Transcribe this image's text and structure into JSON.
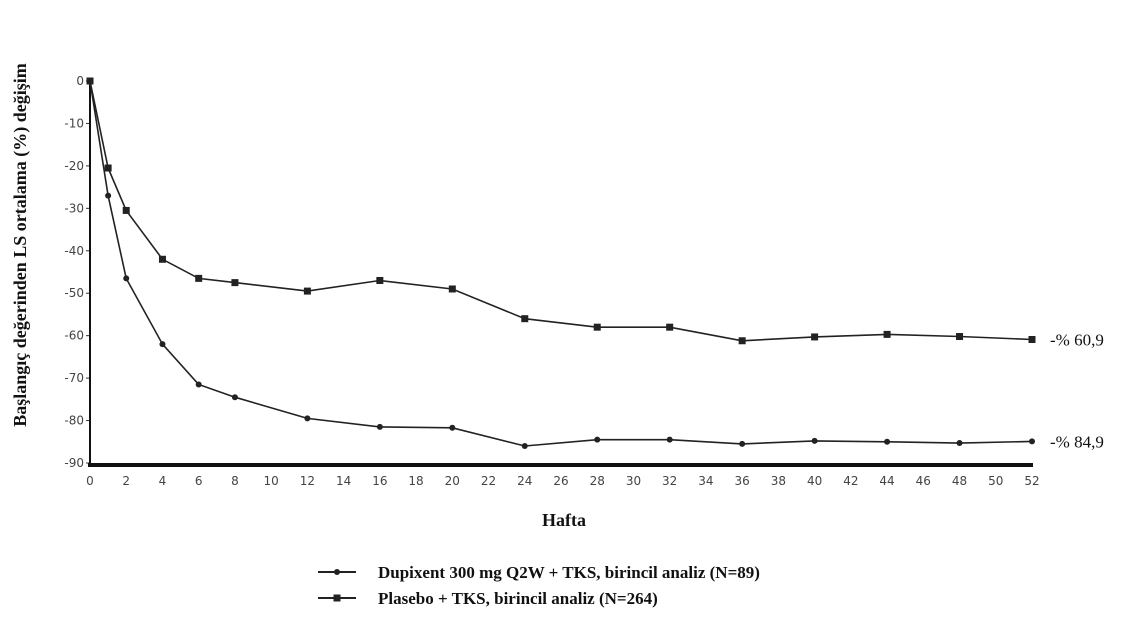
{
  "chart_data": {
    "type": "line",
    "title": "",
    "xlabel": "Hafta",
    "ylabel": "Başlangıç değerinden  LS ortalama (%) değişim",
    "xlim": [
      0,
      52
    ],
    "ylim": [
      -90,
      0
    ],
    "x_ticks": [
      0,
      2,
      4,
      6,
      8,
      10,
      12,
      14,
      16,
      18,
      20,
      22,
      24,
      26,
      28,
      30,
      32,
      34,
      36,
      38,
      40,
      42,
      44,
      46,
      48,
      50,
      52
    ],
    "y_ticks": [
      0,
      -10,
      -20,
      -30,
      -40,
      -50,
      -60,
      -70,
      -80,
      -90
    ],
    "grid": false,
    "legend_position": "bottom",
    "series": [
      {
        "name": "Dupixent 300 mg Q2W + TKS, birincil analiz (N=89)",
        "marker": "circle",
        "color": "#222222",
        "x": [
          0,
          1,
          2,
          4,
          6,
          8,
          12,
          16,
          20,
          24,
          28,
          32,
          36,
          40,
          44,
          48,
          52
        ],
        "values": [
          0,
          -27,
          -46.5,
          -62,
          -71.5,
          -74.5,
          -79.5,
          -81.5,
          -81.7,
          -86,
          -84.5,
          -84.5,
          -85.5,
          -84.8,
          -85,
          -85.3,
          -84.9
        ],
        "end_label": "-% 84,9"
      },
      {
        "name": "Plasebo + TKS, birincil analiz (N=264)",
        "marker": "square",
        "color": "#222222",
        "x": [
          0,
          1,
          2,
          4,
          6,
          8,
          12,
          16,
          20,
          24,
          28,
          32,
          36,
          40,
          44,
          48,
          52
        ],
        "values": [
          0,
          -20.5,
          -30.5,
          -42,
          -46.5,
          -47.5,
          -49.5,
          -47,
          -49,
          -56,
          -58,
          -58,
          -61.2,
          -60.3,
          -59.7,
          -60.2,
          -60.9
        ],
        "end_label": "-% 60,9"
      }
    ]
  }
}
